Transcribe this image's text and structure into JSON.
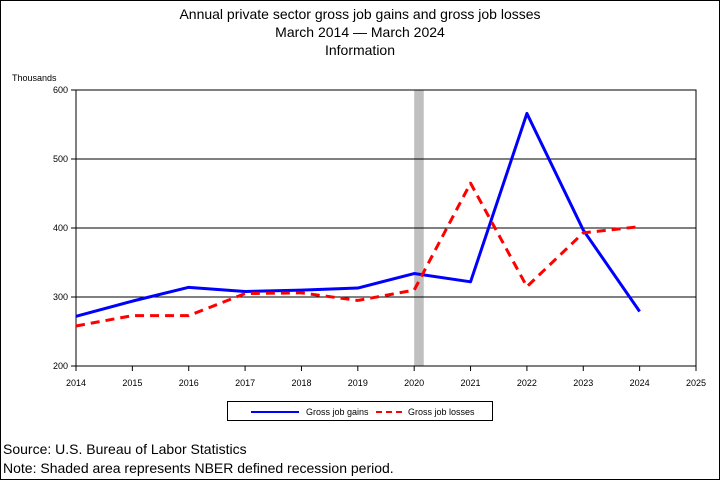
{
  "colors": {
    "gains": "#0000ff",
    "losses": "#ff0000",
    "recession": "#c0c0c0"
  },
  "chart_data": {
    "type": "line",
    "title": "Annual private sector gross job gains and gross job losses",
    "subtitle": "March 2014 — March 2024",
    "subtitle2": "Information",
    "unit_label": "Thousands",
    "xlim": [
      2014,
      2025
    ],
    "ylim": [
      200,
      600
    ],
    "x_ticks": [
      2014,
      2015,
      2016,
      2017,
      2018,
      2019,
      2020,
      2021,
      2022,
      2023,
      2024,
      2025
    ],
    "y_ticks": [
      200,
      300,
      400,
      500,
      600
    ],
    "grid": true,
    "legend_position": "bottom",
    "recession": {
      "start": 2020.0,
      "end": 2020.17
    },
    "x": [
      2014,
      2015,
      2016,
      2017,
      2018,
      2019,
      2020,
      2021,
      2022,
      2023,
      2024
    ],
    "series": [
      {
        "name": "Gross job gains",
        "style": "solid",
        "values": [
          272,
          294,
          314,
          308,
          310,
          313,
          334,
          322,
          566,
          397,
          279
        ]
      },
      {
        "name": "Gross job losses",
        "style": "dashed",
        "values": [
          258,
          273,
          273,
          305,
          306,
          295,
          310,
          465,
          315,
          393,
          402
        ]
      }
    ]
  },
  "notes": {
    "source": "Source: U.S. Bureau of Labor Statistics",
    "note": "Note: Shaded area represents NBER defined recession period."
  }
}
